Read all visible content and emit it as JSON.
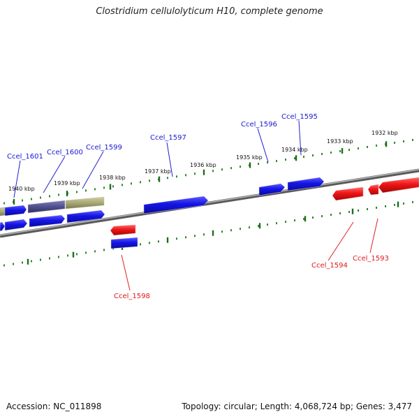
{
  "title": "Clostridium cellulolyticum H10, complete genome",
  "footer": {
    "accession": "Accession: NC_011898",
    "summary": "Topology: circular; Length: 4,068,724 bp; Genes: 3,477"
  },
  "colors": {
    "forward_gene": "#1010e0",
    "reverse_gene": "#f01010",
    "ruler_ticks": "#2a8a2a",
    "backbone": "#8c8c8c",
    "hypothetical_gene": "#505090",
    "rna_gene": "#a8a878"
  },
  "scale_labels": [
    "1940 kbp",
    "1939 kbp",
    "1938 kbp",
    "1937 kbp",
    "1936 kbp",
    "1935 kbp",
    "1934 kbp",
    "1933 kbp",
    "1932 kbp"
  ],
  "gene_labels": {
    "forward": [
      "Ccel_1601",
      "Ccel_1600",
      "Ccel_1599",
      "Ccel_1597",
      "Ccel_1596",
      "Ccel_1595"
    ],
    "reverse": [
      "Ccel_1598",
      "Ccel_1594",
      "Ccel_1593"
    ]
  }
}
